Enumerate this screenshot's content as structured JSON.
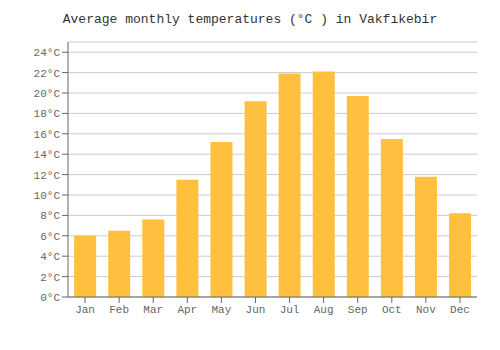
{
  "chart_data": {
    "type": "bar",
    "title": "Average monthly temperatures (°C ) in Vakfıkebir",
    "categories": [
      "Jan",
      "Feb",
      "Mar",
      "Apr",
      "May",
      "Jun",
      "Jul",
      "Aug",
      "Sep",
      "Oct",
      "Nov",
      "Dec"
    ],
    "values": [
      6.0,
      6.5,
      7.6,
      11.5,
      15.2,
      19.2,
      21.9,
      22.1,
      19.7,
      15.5,
      11.8,
      8.2
    ],
    "color": "#FFC040",
    "ylim": [
      0,
      25
    ],
    "yticks": [
      {
        "value": 0,
        "label": "0°C"
      },
      {
        "value": 2,
        "label": "2°C"
      },
      {
        "value": 4,
        "label": "4°C"
      },
      {
        "value": 6,
        "label": "6°C"
      },
      {
        "value": 8,
        "label": "8°C"
      },
      {
        "value": 10,
        "label": "10°C"
      },
      {
        "value": 12,
        "label": "12°C"
      },
      {
        "value": 14,
        "label": "14°C"
      },
      {
        "value": 16,
        "label": "16°C"
      },
      {
        "value": 18,
        "label": "18°C"
      },
      {
        "value": 20,
        "label": "20°C"
      },
      {
        "value": 22,
        "label": "22°C"
      },
      {
        "value": 24,
        "label": "24°C"
      }
    ],
    "grid": true
  }
}
